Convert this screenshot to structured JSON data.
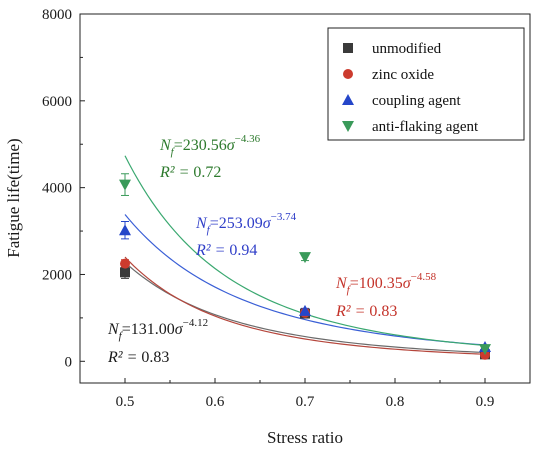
{
  "chart_data": {
    "type": "scatter",
    "xlabel": "Stress ratio",
    "ylabel": "Fatigue life(time)",
    "xlim": [
      0.45,
      0.95
    ],
    "ylim": [
      -500,
      8000
    ],
    "xticks": [
      "0.5",
      "0.6",
      "0.7",
      "0.8",
      "0.9"
    ],
    "yticks": [
      "0",
      "2000",
      "4000",
      "6000",
      "8000"
    ],
    "legend_position": "top-right",
    "series": [
      {
        "name": "unmodified",
        "marker": "square",
        "color": "#3a3a3a",
        "x": [
          0.5,
          0.7,
          0.9
        ],
        "y": [
          2050,
          1100,
          160
        ],
        "error": [
          140,
          60,
          30
        ],
        "fit": {
          "a": 131.0,
          "b": -4.12
        },
        "fit_color": "#6b6b6b"
      },
      {
        "name": "zinc oxide",
        "marker": "circle",
        "color": "#cc3b2e",
        "x": [
          0.5,
          0.7,
          0.9
        ],
        "y": [
          2250,
          1120,
          150
        ],
        "error": [
          90,
          50,
          30
        ],
        "fit": {
          "a": 100.35,
          "b": -4.58
        },
        "fit_color": "#b5463c"
      },
      {
        "name": "coupling agent",
        "marker": "triangle-up",
        "color": "#2546c9",
        "x": [
          0.5,
          0.7,
          0.9
        ],
        "y": [
          3020,
          1160,
          330
        ],
        "error": [
          200,
          60,
          30
        ],
        "fit": {
          "a": 253.09,
          "b": -3.74
        },
        "fit_color": "#3a5fd6"
      },
      {
        "name": "anti-flaking agent",
        "marker": "triangle-down",
        "color": "#3a9a5a",
        "x": [
          0.5,
          0.7,
          0.9
        ],
        "y": [
          4070,
          2400,
          280
        ],
        "error": [
          250,
          80,
          30
        ],
        "fit": {
          "a": 230.56,
          "b": -4.36
        },
        "fit_color": "#3aa870"
      }
    ],
    "annotations": [
      {
        "coef": "=230.56",
        "exp": "−4.36",
        "r2": "0.72",
        "color": "#2d7a2d"
      },
      {
        "coef": "=253.09",
        "exp": "−3.74",
        "r2": "0.94",
        "color": "#2f3ec8"
      },
      {
        "coef": "=100.35",
        "exp": "−4.58",
        "r2": "0.83",
        "color": "#c4332a"
      },
      {
        "coef": "=131.00",
        "exp": "−4.12",
        "r2": "0.83",
        "color": "#1a1a1a"
      }
    ],
    "equation_prefix": "N",
    "equation_subscript": "f",
    "equation_variable": "σ",
    "r2_label": "R² = "
  }
}
